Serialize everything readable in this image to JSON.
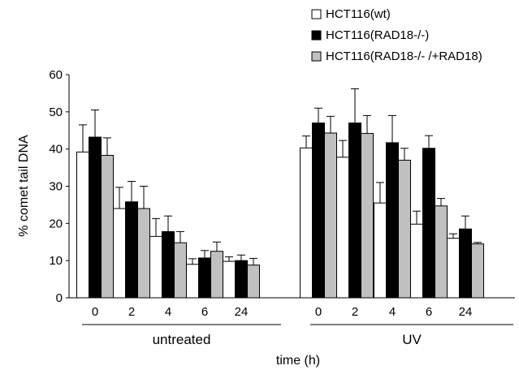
{
  "chart_data": {
    "type": "bar",
    "title": "",
    "xlabel": "time (h)",
    "ylabel": "% comet tail DNA",
    "ylim": [
      0,
      60
    ],
    "yticks": [
      0,
      10,
      20,
      30,
      40,
      50,
      60
    ],
    "grid": false,
    "legend_position": "top-right",
    "groups": [
      {
        "label": "untreated",
        "categories": [
          "0",
          "2",
          "4",
          "6",
          "24"
        ]
      },
      {
        "label": "UV",
        "categories": [
          "0",
          "2",
          "4",
          "6",
          "24"
        ]
      }
    ],
    "series": [
      {
        "name": "HCT116(wt)",
        "color": "#ffffff",
        "values": [
          39.2,
          24.0,
          16.5,
          9.0,
          9.8,
          40.3,
          37.8,
          25.5,
          19.8,
          16.0
        ],
        "errors": [
          7.3,
          5.7,
          4.8,
          1.5,
          1.2,
          3.2,
          4.5,
          5.5,
          3.5,
          1.2
        ]
      },
      {
        "name": "HCT116(RAD18-/-)",
        "color": "#000000",
        "values": [
          43.2,
          25.8,
          17.8,
          10.7,
          10.0,
          47.0,
          47.0,
          41.7,
          40.2,
          18.5
        ],
        "errors": [
          7.3,
          5.5,
          4.2,
          2.0,
          1.5,
          4.0,
          9.2,
          7.3,
          3.4,
          3.5
        ]
      },
      {
        "name": "HCT116(RAD18-/- /+RAD18)",
        "color": "#c0c0c0",
        "values": [
          38.3,
          24.0,
          14.8,
          12.5,
          8.8,
          44.3,
          44.2,
          37.0,
          24.7,
          14.5
        ],
        "errors": [
          4.7,
          6.0,
          3.0,
          2.5,
          1.8,
          4.5,
          4.8,
          3.2,
          2.0,
          0.4
        ]
      }
    ]
  }
}
